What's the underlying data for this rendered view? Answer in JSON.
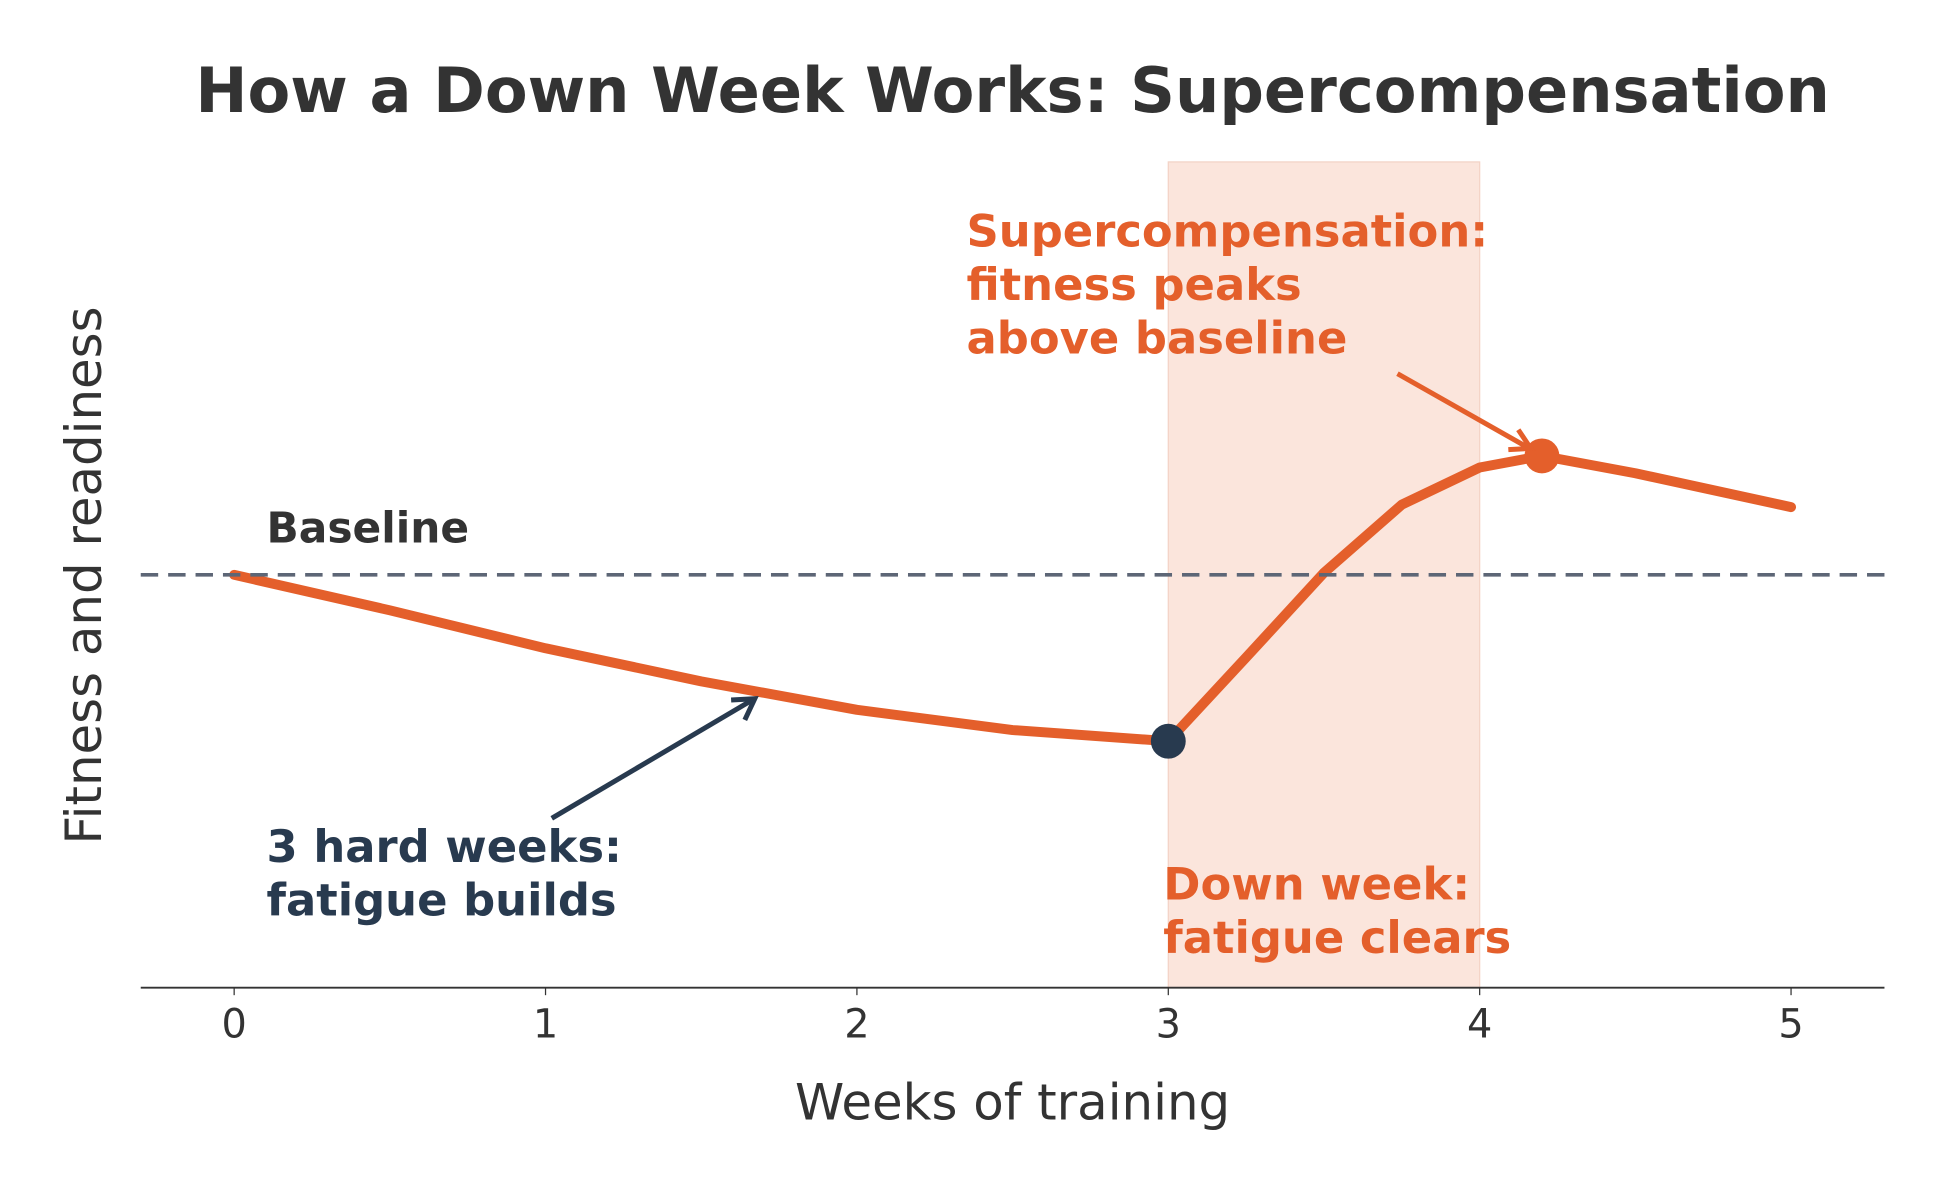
{
  "chart_data": {
    "type": "line",
    "title": "How a Down Week Works: Supercompensation",
    "x_label": "Weeks of training",
    "y_label": "Fitness and readiness",
    "x": [
      0,
      0.5,
      1,
      1.5,
      2,
      2.5,
      3,
      3.25,
      3.5,
      3.75,
      4,
      4.2,
      4.5,
      5
    ],
    "series": [
      {
        "color": "#e45f2b",
        "values": [
          0,
          -0.086,
          -0.178,
          -0.258,
          -0.327,
          -0.376,
          -0.403,
          -0.2,
          0.005,
          0.17,
          0.26,
          0.288,
          0.246,
          0.164
        ]
      }
    ],
    "points": [
      {
        "x": 3,
        "y": -0.403,
        "color": "#283a4f"
      },
      {
        "x": 4.2,
        "y": 0.288,
        "color": "#e45f2b"
      }
    ],
    "baseline": {
      "value": 0,
      "label": "Baseline",
      "color": "#5d6676"
    },
    "span": {
      "xmin": 3,
      "xmax": 4,
      "color": "#fbe5dc"
    },
    "xlim": [
      -0.3,
      5.3
    ],
    "ylim": [
      -1,
      1
    ],
    "xticks": [
      0,
      1,
      2,
      3,
      4,
      5
    ],
    "annotations": [
      {
        "lines": [
          "3 hard weeks:",
          "fatigue builds"
        ],
        "color": "#283a4f"
      },
      {
        "lines": [
          "Supercompensation:",
          "fitness peaks",
          "above baseline"
        ],
        "color": "#e45f2b"
      },
      {
        "lines": [
          "Down week:",
          "fatigue clears"
        ],
        "color": "#e45f2b"
      }
    ]
  }
}
